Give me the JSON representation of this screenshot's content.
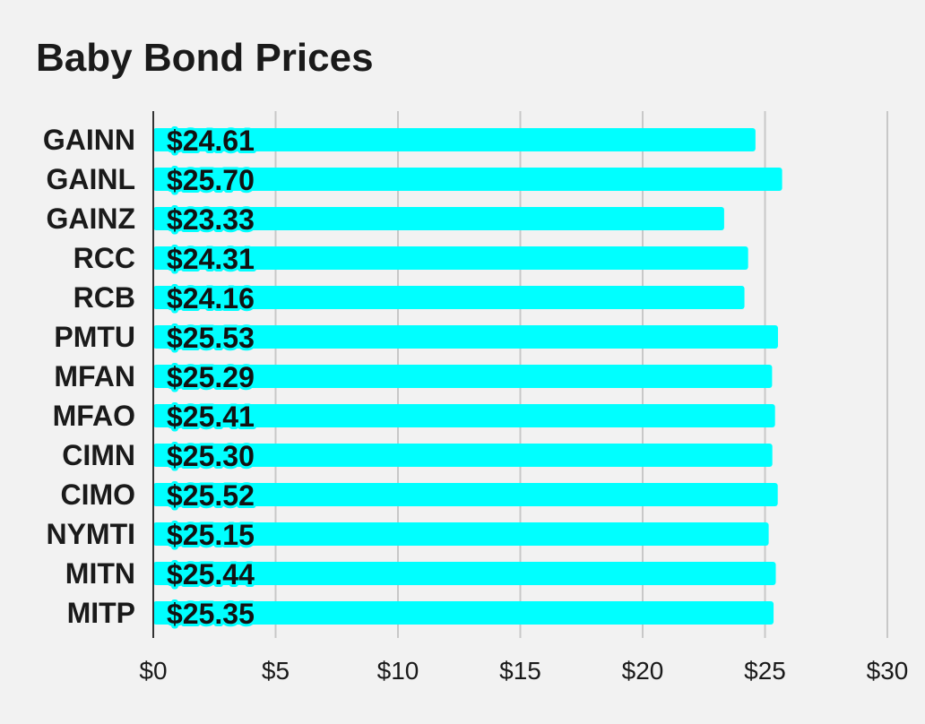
{
  "chart_data": {
    "type": "bar",
    "orientation": "horizontal",
    "title": "Baby Bond Prices",
    "xlabel": "",
    "ylabel": "",
    "categories": [
      "GAINN",
      "GAINL",
      "GAINZ",
      "RCC",
      "RCB",
      "PMTU",
      "MFAN",
      "MFAO",
      "CIMN",
      "CIMO",
      "NYMTI",
      "MITN",
      "MITP"
    ],
    "values": [
      24.61,
      25.7,
      23.33,
      24.31,
      24.16,
      25.53,
      25.29,
      25.41,
      25.3,
      25.52,
      25.15,
      25.44,
      25.35
    ],
    "value_labels": [
      "$24.61",
      "$25.70",
      "$23.33",
      "$24.31",
      "$24.16",
      "$25.53",
      "$25.29",
      "$25.41",
      "$25.30",
      "$25.52",
      "$25.15",
      "$25.44",
      "$25.35"
    ],
    "xlim": [
      0,
      30
    ],
    "x_ticks": [
      0,
      5,
      10,
      15,
      20,
      25,
      30
    ],
    "x_tick_labels": [
      "$0",
      "$5",
      "$10",
      "$15",
      "$20",
      "$25",
      "$30"
    ],
    "grid": "vertical",
    "legend": "none",
    "colors": {
      "bar": "#00ffff",
      "background": "#f2f2f2",
      "grid": "#c8c8c8",
      "axis": "#333333"
    }
  }
}
